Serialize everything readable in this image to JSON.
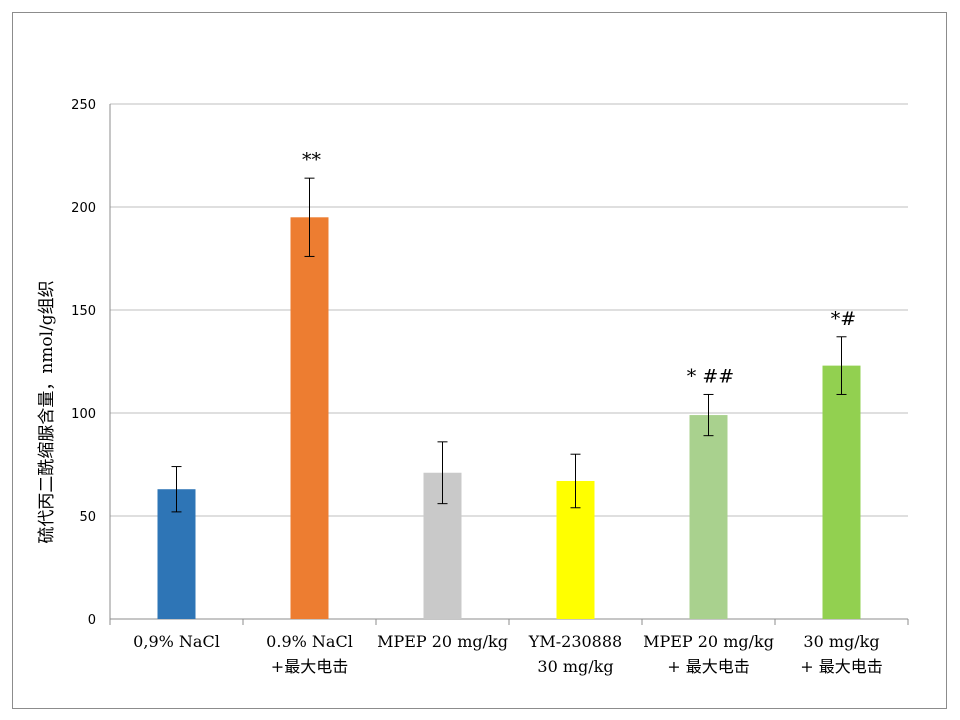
{
  "chart_data": {
    "type": "bar",
    "ylabel": "硫代丙二酰缩脲含量，nmol/g组织",
    "ylim": [
      0,
      250
    ],
    "yticks": [
      0,
      50,
      100,
      150,
      200,
      250
    ],
    "grid": true,
    "categories": [
      [
        "0,9% NaCl"
      ],
      [
        "0.9% NaCl",
        "+最大电击"
      ],
      [
        "MPEP 20 mg/kg"
      ],
      [
        "YM-230888",
        "30 mg/kg"
      ],
      [
        "MPEP 20 mg/kg",
        "+ 最大电击"
      ],
      [
        "30 mg/kg",
        "+ 最大电击"
      ]
    ],
    "values": [
      63,
      195,
      71,
      67,
      99,
      123
    ],
    "errors": [
      11,
      19,
      15,
      13,
      10,
      14
    ],
    "annotations": [
      "",
      "**",
      "",
      "",
      "* ##",
      "*#"
    ],
    "colors": [
      "#2e75b6",
      "#ed7d31",
      "#c9c9c9",
      "#ffff00",
      "#a9d18e",
      "#92d050"
    ]
  }
}
